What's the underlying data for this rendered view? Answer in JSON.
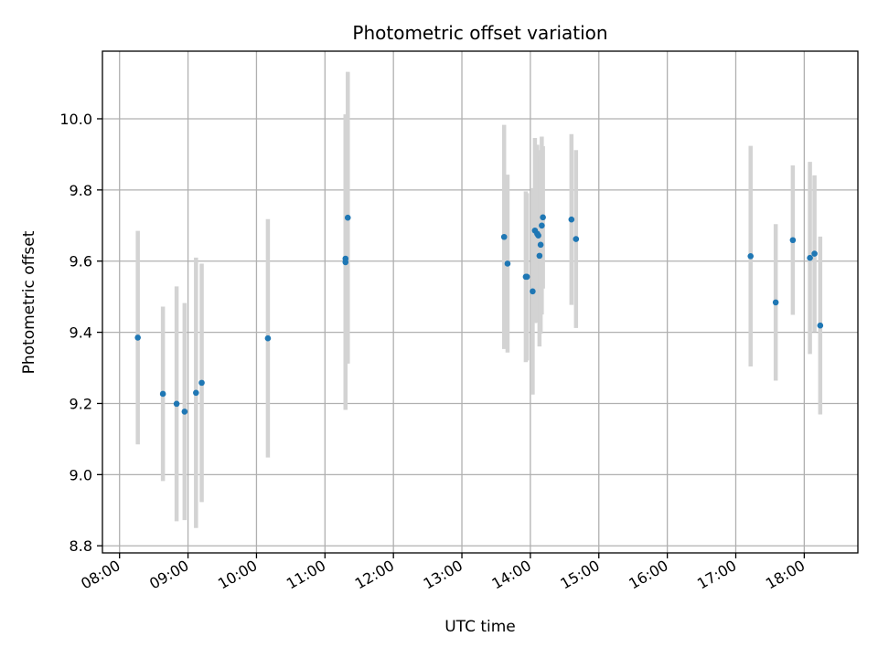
{
  "chart_data": {
    "type": "scatter",
    "title": "Photometric offset variation",
    "xlabel": "UTC time",
    "ylabel": "Photometric offset",
    "x_tick_labels": [
      "08:00",
      "09:00",
      "10:00",
      "11:00",
      "12:00",
      "13:00",
      "14:00",
      "15:00",
      "16:00",
      "17:00",
      "18:00"
    ],
    "y_tick_labels": [
      "8.8",
      "9.0",
      "9.2",
      "9.4",
      "9.6",
      "9.8",
      "10.0"
    ],
    "y_ticks": [
      8.8,
      9.0,
      9.2,
      9.4,
      9.6,
      9.8,
      10.0
    ],
    "ylim": [
      8.78,
      10.19
    ],
    "xlim": [
      "07:45",
      "18:47"
    ],
    "grid": true,
    "errorbar_color": "#d3d3d3",
    "marker_color": "#1f77b4",
    "points": [
      {
        "x": "08:16",
        "y": 9.385,
        "err": 0.3
      },
      {
        "x": "08:38",
        "y": 9.227,
        "err": 0.245
      },
      {
        "x": "08:50",
        "y": 9.199,
        "err": 0.33
      },
      {
        "x": "08:57",
        "y": 9.177,
        "err": 0.305
      },
      {
        "x": "09:07",
        "y": 9.23,
        "err": 0.38
      },
      {
        "x": "09:12",
        "y": 9.258,
        "err": 0.335
      },
      {
        "x": "10:10",
        "y": 9.383,
        "err": 0.335
      },
      {
        "x": "11:18",
        "y": 9.607,
        "err": 0.405
      },
      {
        "x": "11:18",
        "y": 9.597,
        "err": 0.415
      },
      {
        "x": "11:20",
        "y": 9.722,
        "err": 0.41
      },
      {
        "x": "13:37",
        "y": 9.668,
        "err": 0.315
      },
      {
        "x": "13:40",
        "y": 9.593,
        "err": 0.25
      },
      {
        "x": "13:56",
        "y": 9.556,
        "err": 0.24
      },
      {
        "x": "13:57",
        "y": 9.556,
        "err": 0.235
      },
      {
        "x": "14:02",
        "y": 9.515,
        "err": 0.29
      },
      {
        "x": "14:04",
        "y": 9.686,
        "err": 0.26
      },
      {
        "x": "14:06",
        "y": 9.677,
        "err": 0.25
      },
      {
        "x": "14:07",
        "y": 9.672,
        "err": 0.24
      },
      {
        "x": "14:08",
        "y": 9.615,
        "err": 0.255
      },
      {
        "x": "14:09",
        "y": 9.646,
        "err": 0.25
      },
      {
        "x": "14:10",
        "y": 9.7,
        "err": 0.25
      },
      {
        "x": "14:11",
        "y": 9.723,
        "err": 0.2
      },
      {
        "x": "14:36",
        "y": 9.717,
        "err": 0.24
      },
      {
        "x": "14:40",
        "y": 9.662,
        "err": 0.25
      },
      {
        "x": "17:13",
        "y": 9.614,
        "err": 0.31
      },
      {
        "x": "17:35",
        "y": 9.484,
        "err": 0.22
      },
      {
        "x": "17:50",
        "y": 9.659,
        "err": 0.21
      },
      {
        "x": "18:05",
        "y": 9.609,
        "err": 0.27
      },
      {
        "x": "18:09",
        "y": 9.621,
        "err": 0.22
      },
      {
        "x": "18:14",
        "y": 9.419,
        "err": 0.25
      }
    ]
  }
}
